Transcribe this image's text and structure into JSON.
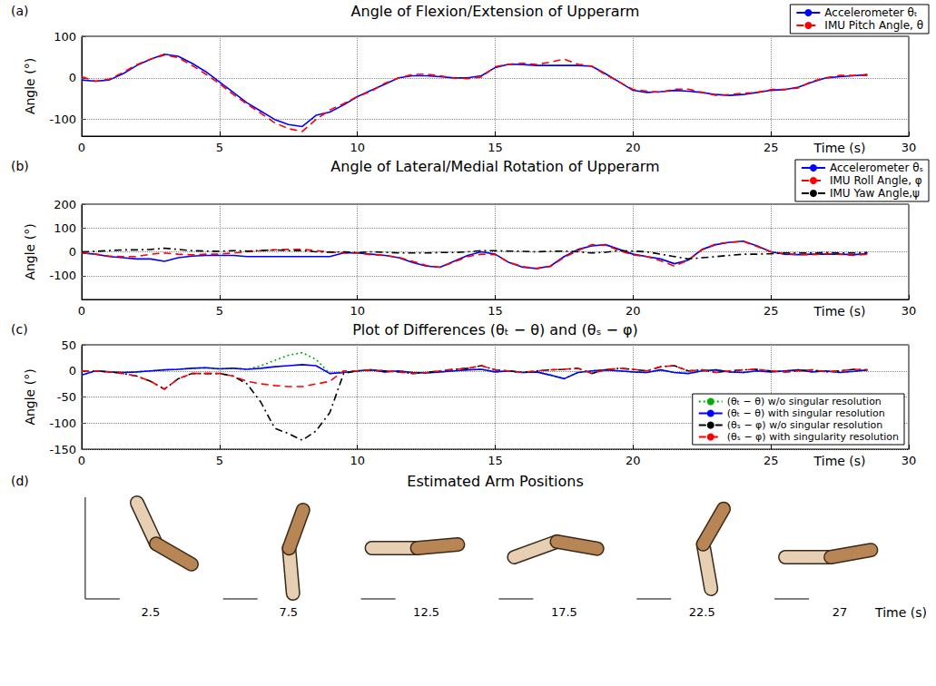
{
  "chart_data": [
    {
      "type": "line",
      "title": "Angle of Flexion/Extension of Upperarm",
      "letter": "(a)",
      "x_label": "Time (s)",
      "y_label": "Angle (°)",
      "x": [
        0,
        0.5,
        1,
        1.5,
        2,
        2.5,
        3,
        3.5,
        4,
        4.5,
        5,
        5.5,
        6,
        6.5,
        7,
        7.5,
        8,
        8.5,
        9,
        9.5,
        10,
        10.5,
        11,
        11.5,
        12,
        12.5,
        13,
        13.5,
        14,
        14.5,
        15,
        15.5,
        16,
        16.5,
        17,
        17.5,
        18,
        18.5,
        19,
        19.5,
        20,
        20.5,
        21,
        21.5,
        22,
        22.5,
        23,
        23.5,
        24,
        24.5,
        25,
        25.5,
        26,
        26.5,
        27,
        27.5,
        28,
        28.5
      ],
      "series": [
        {
          "name": "Accelerometer θₜ",
          "color": "#0000ff",
          "line_style": "solid",
          "values": [
            -5,
            -8,
            -5,
            10,
            30,
            45,
            57,
            52,
            35,
            15,
            -10,
            -35,
            -60,
            -80,
            -100,
            -112,
            -117,
            -90,
            -82,
            -65,
            -45,
            -30,
            -15,
            0,
            5,
            5,
            3,
            0,
            0,
            5,
            25,
            33,
            32,
            30,
            30,
            30,
            30,
            28,
            10,
            -10,
            -30,
            -35,
            -33,
            -30,
            -32,
            -35,
            -40,
            -42,
            -40,
            -35,
            -30,
            -28,
            -22,
            -10,
            0,
            3,
            5,
            8
          ]
        },
        {
          "name": "IMU Pitch Angle, θ",
          "color": "#ff0000",
          "line_style": "dashed",
          "values": [
            3,
            -8,
            -3,
            13,
            32,
            45,
            55,
            49,
            30,
            9,
            -14,
            -40,
            -63,
            -85,
            -108,
            -122,
            -129,
            -100,
            -77,
            -62,
            -45,
            -32,
            -13,
            0,
            8,
            9,
            5,
            0,
            -2,
            2,
            27,
            33,
            35,
            32,
            38,
            45,
            33,
            28,
            8,
            -10,
            -28,
            -32,
            -35,
            -27,
            -27,
            -35,
            -42,
            -40,
            -37,
            -35,
            -28,
            -28,
            -24,
            -8,
            0,
            6,
            6,
            6
          ]
        }
      ],
      "xlim": [
        0,
        30
      ],
      "xticks": [
        0,
        5,
        10,
        15,
        20,
        25,
        30
      ],
      "ylim": [
        -140,
        100
      ],
      "yticks": [
        -100,
        0,
        100
      ],
      "grid": true,
      "legend": "upper right"
    },
    {
      "type": "line",
      "title": "Angle of Lateral/Medial Rotation of Upperarm",
      "letter": "(b)",
      "x_label": "Time (s)",
      "y_label": "Angle (°)",
      "x": [
        0,
        0.5,
        1,
        1.5,
        2,
        2.5,
        3,
        3.5,
        4,
        4.5,
        5,
        5.5,
        6,
        6.5,
        7,
        7.5,
        8,
        8.5,
        9,
        9.5,
        10,
        10.5,
        11,
        11.5,
        12,
        12.5,
        13,
        13.5,
        14,
        14.5,
        15,
        15.5,
        16,
        16.5,
        17,
        17.5,
        18,
        18.5,
        19,
        19.5,
        20,
        20.5,
        21,
        21.5,
        22,
        22.5,
        23,
        23.5,
        24,
        24.5,
        25,
        25.5,
        26,
        26.5,
        27,
        27.5,
        28,
        28.5
      ],
      "series": [
        {
          "name": "Accelerometer θₛ",
          "color": "#0000ff",
          "line_style": "solid",
          "values": [
            -5,
            -10,
            -20,
            -25,
            -30,
            -30,
            -40,
            -25,
            -18,
            -15,
            -15,
            -15,
            -20,
            -20,
            -20,
            -20,
            -20,
            -20,
            -20,
            -5,
            -5,
            -10,
            -15,
            -25,
            -45,
            -60,
            -65,
            -40,
            -15,
            0,
            -10,
            -45,
            -65,
            -70,
            -60,
            -20,
            10,
            25,
            30,
            10,
            -10,
            -20,
            -30,
            -50,
            -35,
            10,
            30,
            40,
            45,
            25,
            0,
            -10,
            -12,
            -10,
            -10,
            -10,
            -12,
            -8
          ]
        },
        {
          "name": "IMU Roll Angle, φ",
          "color": "#ff0000",
          "line_style": "dashed",
          "values": [
            -5,
            -10,
            -18,
            -20,
            -20,
            -10,
            -5,
            -10,
            -13,
            -10,
            -10,
            -5,
            0,
            5,
            8,
            10,
            10,
            5,
            0,
            -5,
            -5,
            -12,
            -15,
            -23,
            -40,
            -57,
            -65,
            -43,
            -20,
            -10,
            -12,
            -45,
            -62,
            -70,
            -62,
            -23,
            5,
            30,
            28,
            5,
            -13,
            -20,
            -38,
            -60,
            -35,
            8,
            33,
            40,
            43,
            22,
            0,
            -8,
            -12,
            -12,
            -8,
            -10,
            -15,
            -10
          ]
        },
        {
          "name": "IMU Yaw Angle,ψ",
          "color": "#000000",
          "line_style": "dashdot",
          "values": [
            0,
            2,
            5,
            8,
            8,
            10,
            15,
            10,
            5,
            3,
            2,
            5,
            3,
            5,
            8,
            5,
            5,
            0,
            -2,
            0,
            -3,
            0,
            -2,
            -5,
            -5,
            -5,
            -3,
            -3,
            0,
            5,
            5,
            3,
            2,
            0,
            2,
            3,
            0,
            -5,
            -2,
            5,
            3,
            0,
            -10,
            -20,
            -30,
            -25,
            -20,
            -15,
            -10,
            -10,
            -8,
            -5,
            -5,
            -5,
            -3,
            -5,
            -5,
            -3
          ]
        }
      ],
      "xlim": [
        0,
        30
      ],
      "xticks": [
        0,
        5,
        10,
        15,
        20,
        25,
        30
      ],
      "ylim": [
        -200,
        200
      ],
      "yticks": [
        -100,
        0,
        100,
        200
      ],
      "grid": true,
      "legend": "upper right"
    },
    {
      "type": "line",
      "title": "Plot of Differences (θₜ − θ) and (θₛ − φ)",
      "letter": "(c)",
      "x_label": "Time (s)",
      "y_label": "Angle (°)",
      "x": [
        0,
        0.5,
        1,
        1.5,
        2,
        2.5,
        3,
        3.5,
        4,
        4.5,
        5,
        5.5,
        6,
        6.5,
        7,
        7.5,
        8,
        8.5,
        9,
        9.5,
        10,
        10.5,
        11,
        11.5,
        12,
        12.5,
        13,
        13.5,
        14,
        14.5,
        15,
        15.5,
        16,
        16.5,
        17,
        17.5,
        18,
        18.5,
        19,
        19.5,
        20,
        20.5,
        21,
        21.5,
        22,
        22.5,
        23,
        23.5,
        24,
        24.5,
        25,
        25.5,
        26,
        26.5,
        27,
        27.5,
        28,
        28.5
      ],
      "series": [
        {
          "name": "(θₜ − θ) w/o singular resolution",
          "color": "#00b000",
          "line_style": "dotted",
          "values": [
            -8,
            0,
            -2,
            -3,
            -2,
            0,
            2,
            3,
            5,
            6,
            4,
            5,
            3,
            10,
            20,
            30,
            35,
            22,
            -5,
            -3,
            0,
            2,
            -2,
            0,
            -3,
            -4,
            -2,
            0,
            2,
            3,
            -2,
            0,
            -3,
            -2,
            -8,
            -15,
            -3,
            0,
            2,
            0,
            -2,
            -3,
            2,
            -3,
            -5,
            0,
            2,
            -2,
            -3,
            0,
            -2,
            0,
            2,
            -2,
            0,
            -3,
            -1,
            2
          ]
        },
        {
          "name": "(θₜ − θ) with singular resolution",
          "color": "#0000ff",
          "line_style": "solid",
          "values": [
            -8,
            0,
            -2,
            -3,
            -2,
            0,
            2,
            3,
            5,
            6,
            4,
            5,
            3,
            5,
            8,
            10,
            12,
            10,
            -5,
            -3,
            0,
            2,
            -2,
            0,
            -3,
            -4,
            -2,
            0,
            2,
            3,
            -2,
            0,
            -3,
            -2,
            -8,
            -15,
            -3,
            0,
            2,
            0,
            -2,
            -3,
            2,
            -3,
            -5,
            0,
            2,
            -2,
            -3,
            0,
            -2,
            0,
            2,
            -2,
            0,
            -3,
            -1,
            2
          ]
        },
        {
          "name": "(θₛ − φ) w/o singular resolution",
          "color": "#000000",
          "line_style": "dashdot",
          "values": [
            0,
            0,
            -2,
            -5,
            -10,
            -20,
            -35,
            -15,
            -5,
            -5,
            -5,
            -10,
            -25,
            -60,
            -110,
            -120,
            -133,
            -115,
            -80,
            -5,
            0,
            2,
            0,
            -2,
            -5,
            -3,
            0,
            3,
            5,
            10,
            2,
            0,
            -3,
            0,
            2,
            3,
            5,
            -5,
            2,
            5,
            3,
            0,
            8,
            10,
            0,
            2,
            -3,
            0,
            2,
            3,
            0,
            -2,
            0,
            2,
            -2,
            0,
            3,
            2
          ]
        },
        {
          "name": "(θₛ − φ) with singularity resolution",
          "color": "#ff0000",
          "line_style": "dashed",
          "values": [
            0,
            0,
            -2,
            -5,
            -10,
            -20,
            -35,
            -15,
            -5,
            -5,
            -5,
            -10,
            -20,
            -25,
            -28,
            -30,
            -30,
            -25,
            -20,
            0,
            0,
            2,
            0,
            -2,
            -5,
            -3,
            0,
            3,
            5,
            10,
            2,
            0,
            -3,
            0,
            2,
            3,
            5,
            -5,
            2,
            5,
            3,
            0,
            8,
            10,
            0,
            2,
            -3,
            0,
            2,
            3,
            0,
            -2,
            0,
            2,
            -2,
            0,
            3,
            2
          ]
        }
      ],
      "xlim": [
        0,
        30
      ],
      "xticks": [
        0,
        5,
        10,
        15,
        20,
        25,
        30
      ],
      "ylim": [
        -150,
        50
      ],
      "yticks": [
        -150,
        -100,
        -50,
        0,
        50
      ],
      "grid": true,
      "legend": "lower right"
    },
    {
      "type": "illustration",
      "title": "Estimated Arm Positions",
      "letter": "(d)",
      "x_label": "Time (s)",
      "frames": [
        2.5,
        7.5,
        12.5,
        17.5,
        22.5,
        27
      ]
    }
  ]
}
